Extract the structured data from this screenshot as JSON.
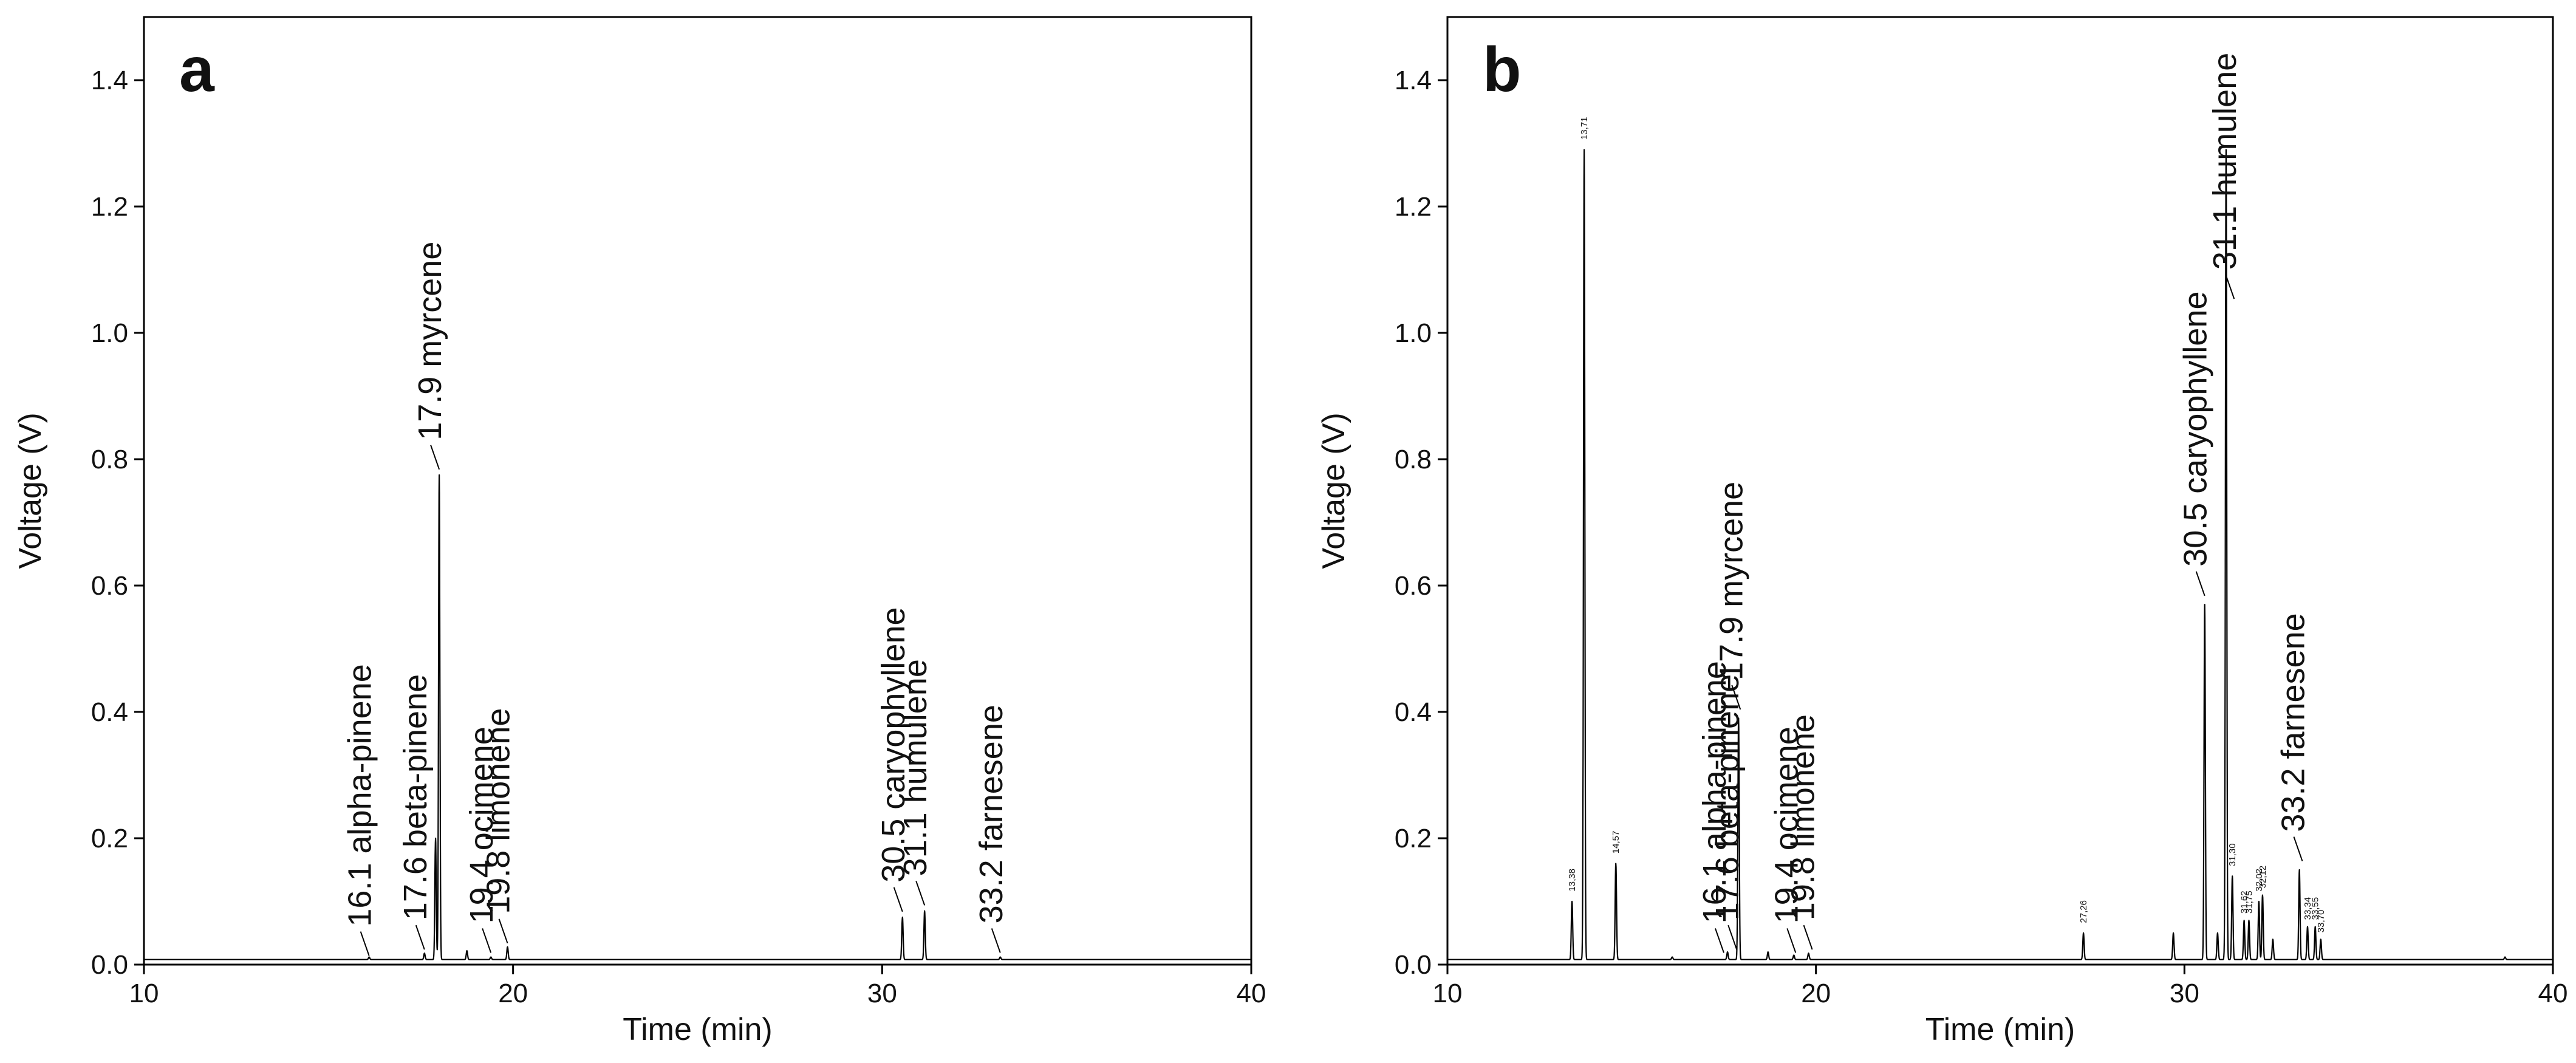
{
  "chart_data": [
    {
      "type": "line",
      "panel_label": "a",
      "xlabel": "Time (min)",
      "ylabel": "Voltage (V)",
      "xlim": [
        10,
        40
      ],
      "ylim": [
        0,
        1.5
      ],
      "x_ticks": [
        10,
        20,
        30,
        40
      ],
      "y_ticks": [
        0.0,
        0.2,
        0.4,
        0.6,
        0.8,
        1.0,
        1.2,
        1.4
      ],
      "y_tick_labels": [
        "0.0",
        "0.2",
        "0.4",
        "0.6",
        "0.8",
        "1.0",
        "1.2",
        "1.4"
      ],
      "baseline": 0.008,
      "peaks": [
        {
          "x": 16.1,
          "y": 0.012
        },
        {
          "x": 17.6,
          "y": 0.018
        },
        {
          "x": 17.9,
          "y": 0.2
        },
        {
          "x": 18.0,
          "y": 0.775
        },
        {
          "x": 18.75,
          "y": 0.022
        },
        {
          "x": 19.4,
          "y": 0.012
        },
        {
          "x": 19.85,
          "y": 0.028
        },
        {
          "x": 30.55,
          "y": 0.075
        },
        {
          "x": 31.15,
          "y": 0.085
        },
        {
          "x": 33.2,
          "y": 0.012
        }
      ],
      "annotations": [
        {
          "text": "16.1  alpha-pinene",
          "x": 16.1,
          "y": 0.01
        },
        {
          "text": "17.6  beta-pinene",
          "x": 17.6,
          "y": 0.02
        },
        {
          "text": "17.9  myrcene",
          "x": 18.0,
          "y": 0.78
        },
        {
          "text": "19.4  ocimene",
          "x": 19.4,
          "y": 0.015
        },
        {
          "text": "19.8  limonene",
          "x": 19.85,
          "y": 0.03
        },
        {
          "text": "30.5  caryophyllene",
          "x": 30.55,
          "y": 0.08
        },
        {
          "text": "31.1  humulene",
          "x": 31.15,
          "y": 0.09
        },
        {
          "text": "33.2  farnesene",
          "x": 33.2,
          "y": 0.015
        }
      ],
      "retention_labels": []
    },
    {
      "type": "line",
      "panel_label": "b",
      "xlabel": "Time (min)",
      "ylabel": "Voltage (V)",
      "xlim": [
        10,
        40
      ],
      "ylim": [
        0,
        1.5
      ],
      "x_ticks": [
        10,
        20,
        30,
        40
      ],
      "y_ticks": [
        0.0,
        0.2,
        0.4,
        0.6,
        0.8,
        1.0,
        1.2,
        1.4
      ],
      "y_tick_labels": [
        "0.0",
        "0.2",
        "0.4",
        "0.6",
        "0.8",
        "1.0",
        "1.2",
        "1.4"
      ],
      "baseline": 0.008,
      "peaks": [
        {
          "x": 13.38,
          "y": 0.1
        },
        {
          "x": 13.71,
          "y": 1.29
        },
        {
          "x": 14.57,
          "y": 0.16
        },
        {
          "x": 16.1,
          "y": 0.012
        },
        {
          "x": 17.6,
          "y": 0.02
        },
        {
          "x": 17.9,
          "y": 0.39
        },
        {
          "x": 18.7,
          "y": 0.02
        },
        {
          "x": 19.4,
          "y": 0.015
        },
        {
          "x": 19.8,
          "y": 0.018
        },
        {
          "x": 27.26,
          "y": 0.05
        },
        {
          "x": 29.7,
          "y": 0.05
        },
        {
          "x": 30.55,
          "y": 0.57
        },
        {
          "x": 30.9,
          "y": 0.05
        },
        {
          "x": 31.13,
          "y": 1.29
        },
        {
          "x": 31.3,
          "y": 0.14
        },
        {
          "x": 31.62,
          "y": 0.07
        },
        {
          "x": 31.75,
          "y": 0.07
        },
        {
          "x": 32.02,
          "y": 0.1
        },
        {
          "x": 32.12,
          "y": 0.11
        },
        {
          "x": 32.4,
          "y": 0.04
        },
        {
          "x": 33.12,
          "y": 0.15
        },
        {
          "x": 33.34,
          "y": 0.06
        },
        {
          "x": 33.55,
          "y": 0.06
        },
        {
          "x": 33.7,
          "y": 0.04
        },
        {
          "x": 38.7,
          "y": 0.012
        }
      ],
      "annotations": [
        {
          "text": "16.1  alpha-pinene",
          "x": 17.5,
          "y": 0.015
        },
        {
          "text": "17.6  beta-pinene",
          "x": 17.85,
          "y": 0.02
        },
        {
          "text": "17.9  myrcene",
          "x": 17.95,
          "y": 0.4
        },
        {
          "text": "19.4  ocimene",
          "x": 19.45,
          "y": 0.015
        },
        {
          "text": "19.8  limonene",
          "x": 19.9,
          "y": 0.02
        },
        {
          "text": "30.5  caryophyllene",
          "x": 30.55,
          "y": 0.58
        },
        {
          "text": "31.1  humulene",
          "x": 31.35,
          "y": 1.05
        },
        {
          "text": "33.2  farnesene",
          "x": 33.2,
          "y": 0.16
        }
      ],
      "retention_labels": [
        {
          "text": "13,38",
          "x": 13.38,
          "y": 0.11
        },
        {
          "text": "13,71",
          "x": 13.71,
          "y": 1.3
        },
        {
          "text": "14,57",
          "x": 14.57,
          "y": 0.17
        },
        {
          "text": "27,26",
          "x": 27.26,
          "y": 0.06
        },
        {
          "text": "31,30",
          "x": 31.3,
          "y": 0.15
        },
        {
          "text": "31,62",
          "x": 31.62,
          "y": 0.075
        },
        {
          "text": "31,75",
          "x": 31.75,
          "y": 0.075
        },
        {
          "text": "32,02",
          "x": 32.02,
          "y": 0.11
        },
        {
          "text": "32,12",
          "x": 32.12,
          "y": 0.115
        },
        {
          "text": "33,34",
          "x": 33.34,
          "y": 0.065
        },
        {
          "text": "33,55",
          "x": 33.55,
          "y": 0.065
        },
        {
          "text": "33,70",
          "x": 33.7,
          "y": 0.045
        }
      ]
    }
  ]
}
